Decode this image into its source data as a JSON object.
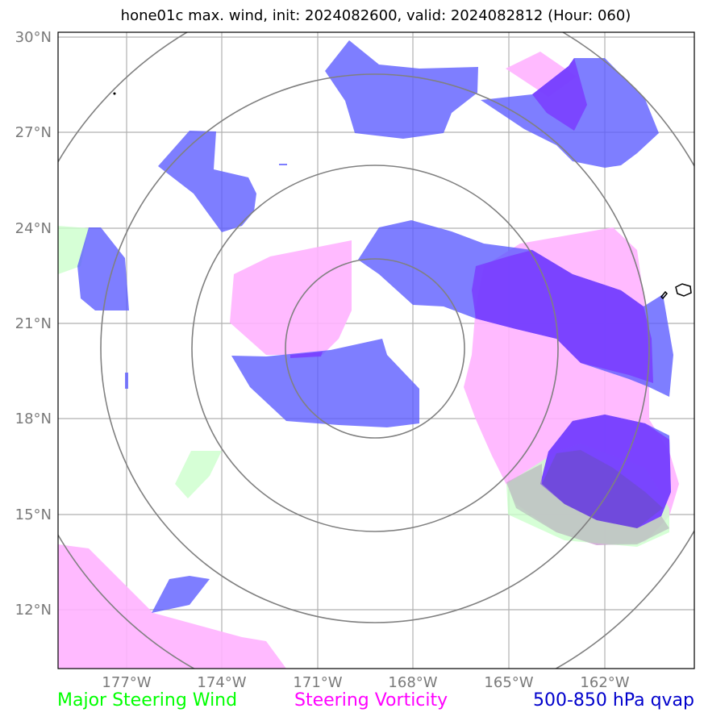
{
  "title": "hone01c max. wind, init: 2024082600, valid: 2024082812 (Hour: 060)",
  "axes": {
    "lat_labels": [
      "30°N",
      "27°N",
      "24°N",
      "21°N",
      "18°N",
      "15°N",
      "12°N"
    ],
    "lon_labels": [
      "177°W",
      "174°W",
      "171°W",
      "168°W",
      "165°W",
      "162°W"
    ]
  },
  "legend": {
    "wind": "Major Steering Wind",
    "vorticity": "Steering Vorticity",
    "qvap": "500-850 hPa qvap"
  },
  "colors": {
    "wind": "#00ff00",
    "vorticity": "#ff00ff",
    "qvap": "#0000cc",
    "wind_fill": "#ccffcc",
    "vort_fill": "#ffb3ff",
    "qvap_fill": "#6666ff",
    "ring": "#808080",
    "grid": "#b0b0b0"
  }
}
